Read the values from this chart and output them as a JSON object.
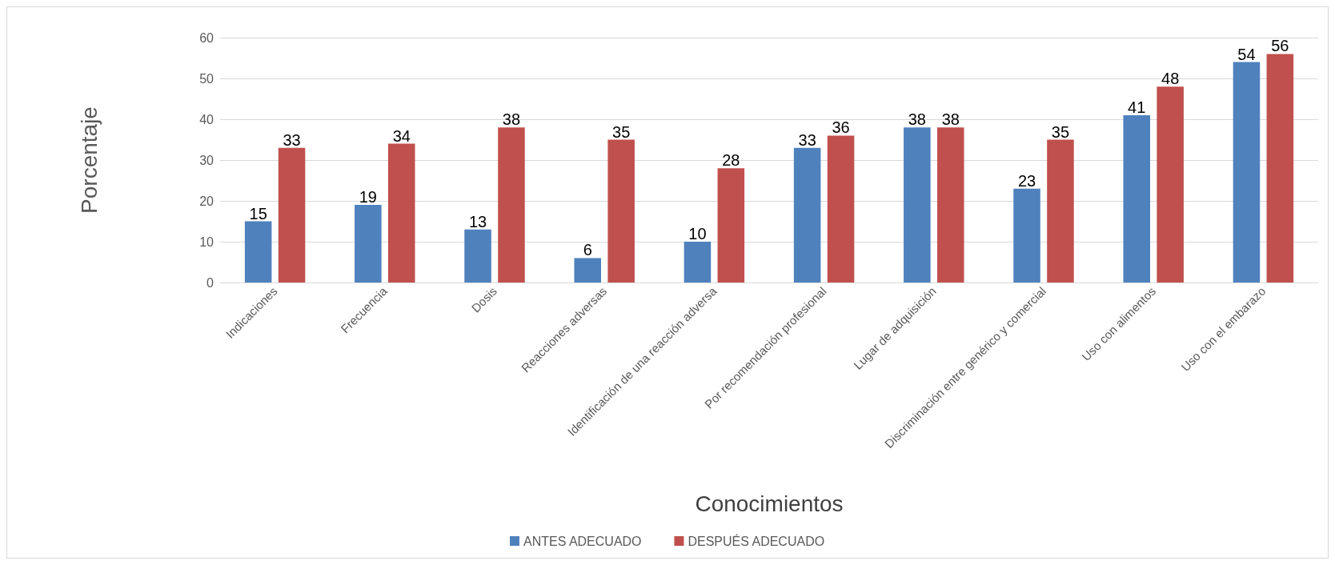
{
  "chart_data": {
    "type": "bar",
    "xlabel": "Conocimientos",
    "ylabel": "Porcentaje",
    "categories": [
      "Indicaciones",
      "Frecuencia",
      "Dosis",
      "Reacciones adversas",
      "Identificación de una reacción adversa",
      "Por recomendación profesional",
      "Lugar de adquisición",
      "Discriminación entre genérico y comercial",
      "Uso con alimentos",
      "Uso con el embarazo"
    ],
    "series": [
      {
        "name": "ANTES ADECUADO",
        "color": "#4f81bd",
        "values": [
          15,
          19,
          13,
          6,
          10,
          33,
          38,
          23,
          41,
          54
        ]
      },
      {
        "name": "DESPUÉS ADECUADO",
        "color": "#c0504d",
        "values": [
          33,
          34,
          38,
          35,
          28,
          36,
          38,
          35,
          48,
          56
        ]
      }
    ],
    "ylim": [
      0,
      60
    ],
    "yticks": [
      0,
      10,
      20,
      30,
      40,
      50,
      60
    ],
    "grid": "y",
    "legend": "bottom",
    "data_labels": true
  }
}
